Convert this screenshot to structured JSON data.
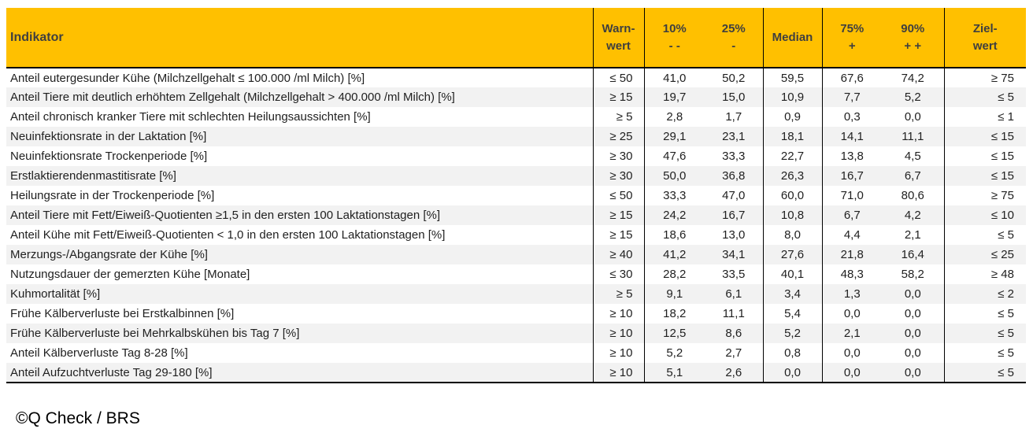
{
  "table": {
    "header": {
      "indikator": "Indikator",
      "warnwert": {
        "line1": "Warn-",
        "line2": "wert"
      },
      "p10": {
        "line1": "10%",
        "line2": "- -"
      },
      "p25": {
        "line1": "25%",
        "line2": "-"
      },
      "median": {
        "line1": "Median",
        "line2": ""
      },
      "p75": {
        "line1": "75%",
        "line2": "+"
      },
      "p90": {
        "line1": "90%",
        "line2": "+ +"
      },
      "zielwert": {
        "line1": "Ziel-",
        "line2": "wert"
      }
    },
    "rows": [
      {
        "indikator": "Anteil eutergesunder Kühe (Milchzellgehalt ≤ 100.000 /ml Milch) [%]",
        "warnwert": "≤ 50",
        "p10": "41,0",
        "p25": "50,2",
        "median": "59,5",
        "p75": "67,6",
        "p90": "74,2",
        "zielwert": "≥ 75"
      },
      {
        "indikator": "Anteil Tiere mit deutlich erhöhtem Zellgehalt (Milchzellgehalt > 400.000 /ml Milch) [%]",
        "warnwert": "≥ 15",
        "p10": "19,7",
        "p25": "15,0",
        "median": "10,9",
        "p75": "7,7",
        "p90": "5,2",
        "zielwert": "≤ 5"
      },
      {
        "indikator": "Anteil chronisch kranker Tiere mit schlechten Heilungsaussichten [%]",
        "warnwert": "≥ 5",
        "p10": "2,8",
        "p25": "1,7",
        "median": "0,9",
        "p75": "0,3",
        "p90": "0,0",
        "zielwert": "≤ 1"
      },
      {
        "indikator": "Neuinfektionsrate in der Laktation [%]",
        "warnwert": "≥ 25",
        "p10": "29,1",
        "p25": "23,1",
        "median": "18,1",
        "p75": "14,1",
        "p90": "11,1",
        "zielwert": "≤ 15"
      },
      {
        "indikator": "Neuinfektionsrate Trockenperiode [%]",
        "warnwert": "≥ 30",
        "p10": "47,6",
        "p25": "33,3",
        "median": "22,7",
        "p75": "13,8",
        "p90": "4,5",
        "zielwert": "≤ 15"
      },
      {
        "indikator": "Erstlaktierendenmastitisrate [%]",
        "warnwert": "≥ 30",
        "p10": "50,0",
        "p25": "36,8",
        "median": "26,3",
        "p75": "16,7",
        "p90": "6,7",
        "zielwert": "≤ 15"
      },
      {
        "indikator": "Heilungsrate in der Trockenperiode [%]",
        "warnwert": "≤ 50",
        "p10": "33,3",
        "p25": "47,0",
        "median": "60,0",
        "p75": "71,0",
        "p90": "80,6",
        "zielwert": "≥ 75"
      },
      {
        "indikator": "Anteil Tiere mit Fett/Eiweiß-Quotienten ≥1,5 in den ersten 100 Laktationstagen [%]",
        "warnwert": "≥ 15",
        "p10": "24,2",
        "p25": "16,7",
        "median": "10,8",
        "p75": "6,7",
        "p90": "4,2",
        "zielwert": "≤ 10"
      },
      {
        "indikator": "Anteil Kühe mit Fett/Eiweiß-Quotienten < 1,0 in den ersten 100 Laktationstagen [%]",
        "warnwert": "≥ 15",
        "p10": "18,6",
        "p25": "13,0",
        "median": "8,0",
        "p75": "4,4",
        "p90": "2,1",
        "zielwert": "≤ 5"
      },
      {
        "indikator": "Merzungs-/Abgangsrate der Kühe [%]",
        "warnwert": "≥ 40",
        "p10": "41,2",
        "p25": "34,1",
        "median": "27,6",
        "p75": "21,8",
        "p90": "16,4",
        "zielwert": "≤ 25"
      },
      {
        "indikator": "Nutzungsdauer der gemerzten Kühe [Monate]",
        "warnwert": "≤ 30",
        "p10": "28,2",
        "p25": "33,5",
        "median": "40,1",
        "p75": "48,3",
        "p90": "58,2",
        "zielwert": "≥ 48"
      },
      {
        "indikator": "Kuhmortalität [%]",
        "warnwert": "≥ 5",
        "p10": "9,1",
        "p25": "6,1",
        "median": "3,4",
        "p75": "1,3",
        "p90": "0,0",
        "zielwert": "≤ 2"
      },
      {
        "indikator": "Frühe Kälberverluste bei Erstkalbinnen [%]",
        "warnwert": "≥ 10",
        "p10": "18,2",
        "p25": "11,1",
        "median": "5,4",
        "p75": "0,0",
        "p90": "0,0",
        "zielwert": "≤ 5"
      },
      {
        "indikator": "Frühe Kälberverluste bei Mehrkalbskühen bis Tag 7 [%]",
        "warnwert": "≥ 10",
        "p10": "12,5",
        "p25": "8,6",
        "median": "5,2",
        "p75": "2,1",
        "p90": "0,0",
        "zielwert": "≤ 5"
      },
      {
        "indikator": "Anteil Kälberverluste Tag 8-28 [%]",
        "warnwert": "≥ 10",
        "p10": "5,2",
        "p25": "2,7",
        "median": "0,8",
        "p75": "0,0",
        "p90": "0,0",
        "zielwert": "≤ 5"
      },
      {
        "indikator": "Anteil Aufzuchtverluste Tag 29-180 [%]",
        "warnwert": "≥ 10",
        "p10": "5,1",
        "p25": "2,6",
        "median": "0,0",
        "p75": "0,0",
        "p90": "0,0",
        "zielwert": "≤ 5"
      }
    ]
  },
  "footer": {
    "credit": "©Q Check / BRS"
  },
  "colors": {
    "header_bg": "#FFC000",
    "header_text": "#3F3F3F",
    "row_alt_bg": "#F2F2F2",
    "border": "#000000"
  }
}
